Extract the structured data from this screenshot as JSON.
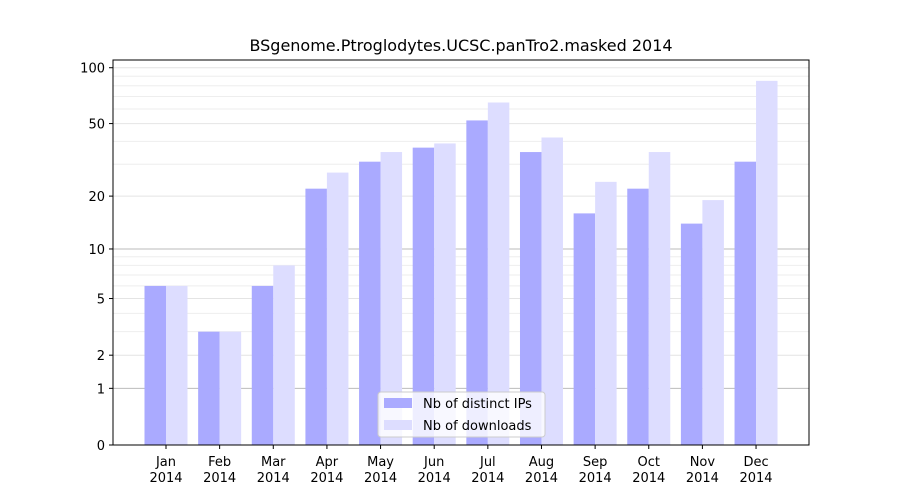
{
  "chart_data": {
    "type": "bar",
    "title": "BSgenome.Ptroglodytes.UCSC.panTro2.masked 2014",
    "xlabel": "",
    "ylabel": "",
    "scale": "log(1+y)",
    "y_ticks": [
      "0",
      "1",
      "2",
      "5",
      "10",
      "20",
      "50",
      "100"
    ],
    "y_tick_values": [
      0,
      1,
      2,
      5,
      10,
      20,
      50,
      100
    ],
    "categories": [
      [
        "Jan",
        "2014"
      ],
      [
        "Feb",
        "2014"
      ],
      [
        "Mar",
        "2014"
      ],
      [
        "Apr",
        "2014"
      ],
      [
        "May",
        "2014"
      ],
      [
        "Jun",
        "2014"
      ],
      [
        "Jul",
        "2014"
      ],
      [
        "Aug",
        "2014"
      ],
      [
        "Sep",
        "2014"
      ],
      [
        "Oct",
        "2014"
      ],
      [
        "Nov",
        "2014"
      ],
      [
        "Dec",
        "2014"
      ]
    ],
    "series": [
      {
        "name": "Nb of distinct IPs",
        "color": "#aaaaff",
        "values": [
          6,
          3,
          6,
          22,
          31,
          37,
          52,
          35,
          16,
          22,
          14,
          31
        ]
      },
      {
        "name": "Nb of downloads",
        "color": "#ddddff",
        "values": [
          6,
          3,
          8,
          27,
          35,
          39,
          65,
          42,
          24,
          35,
          19,
          85
        ]
      }
    ],
    "grid": true,
    "legend_position": "bottom-center"
  }
}
